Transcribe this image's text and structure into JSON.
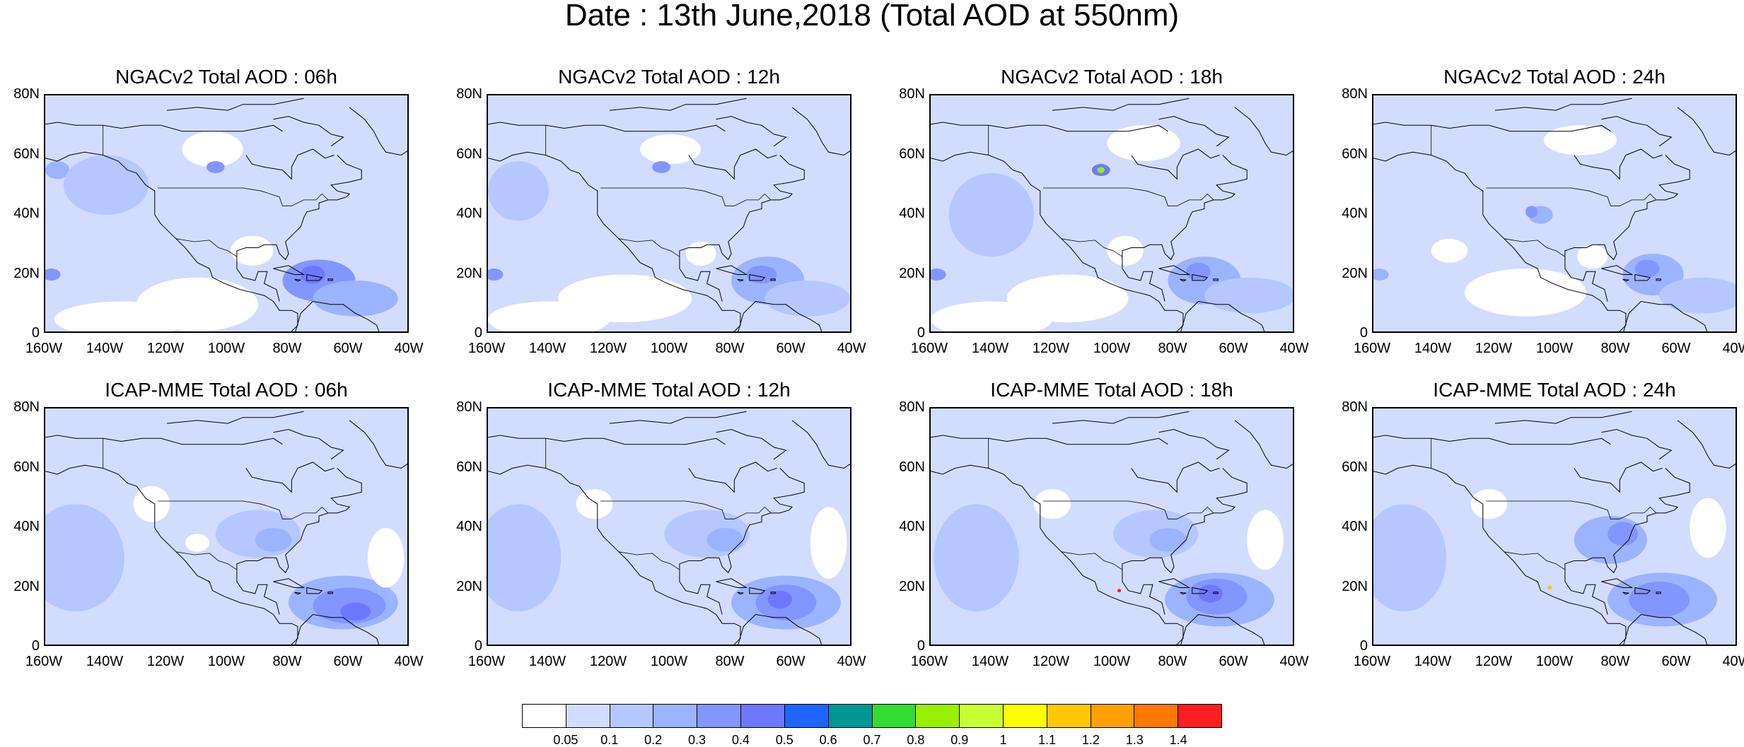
{
  "title": "Date : 13th June,2018 (Total AOD at 550nm)",
  "y_ticks": [
    "80N",
    "60N",
    "40N",
    "20N",
    "0"
  ],
  "x_ticks": [
    "160W",
    "140W",
    "120W",
    "100W",
    "80W",
    "60W",
    "40W"
  ],
  "panels": [
    {
      "title": "NGACv2 Total AOD : 06h",
      "model": "NGACv2",
      "hour": "06h"
    },
    {
      "title": "NGACv2 Total AOD : 12h",
      "model": "NGACv2",
      "hour": "12h"
    },
    {
      "title": "NGACv2 Total AOD : 18h",
      "model": "NGACv2",
      "hour": "18h"
    },
    {
      "title": "NGACv2 Total AOD : 24h",
      "model": "NGACv2",
      "hour": "24h"
    },
    {
      "title": "ICAP-MME Total AOD : 06h",
      "model": "ICAP-MME",
      "hour": "06h"
    },
    {
      "title": "ICAP-MME Total AOD : 12h",
      "model": "ICAP-MME",
      "hour": "12h"
    },
    {
      "title": "ICAP-MME Total AOD : 18h",
      "model": "ICAP-MME",
      "hour": "18h"
    },
    {
      "title": "ICAP-MME Total AOD : 24h",
      "model": "ICAP-MME",
      "hour": "24h"
    }
  ],
  "colorbar": {
    "labels": [
      "0.05",
      "0.1",
      "0.2",
      "0.3",
      "0.4",
      "0.5",
      "0.6",
      "0.7",
      "0.8",
      "0.9",
      "1",
      "1.1",
      "1.2",
      "1.3",
      "1.4"
    ],
    "colors": [
      "#ffffff",
      "#d2dcff",
      "#b4c8ff",
      "#9bb4ff",
      "#8296ff",
      "#6e78ff",
      "#1e64ff",
      "#009696",
      "#32dc32",
      "#96f000",
      "#c8ff32",
      "#ffff00",
      "#ffc800",
      "#ffa000",
      "#ff7800",
      "#ff1e1e"
    ]
  }
}
